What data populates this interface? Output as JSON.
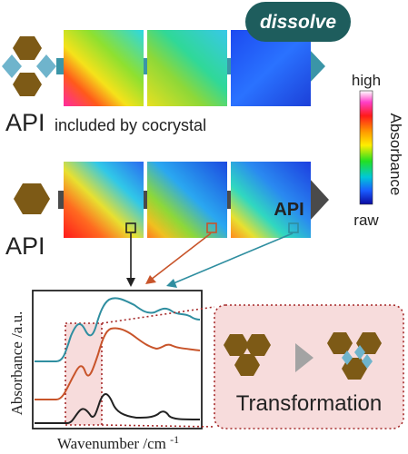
{
  "top_row": {
    "badge_label": "dissolve",
    "caption_api": "API",
    "caption_rest": "included by cocrystal"
  },
  "middle_row": {
    "caption_api": "API",
    "map_label": "API"
  },
  "colorbar": {
    "high_label": "high",
    "low_label": "raw",
    "title": "Absorbance"
  },
  "spectrum": {
    "ylabel": "Absorbance /a.u.",
    "xlabel_main": "Wavenumber /cm",
    "xlabel_sup": "-1"
  },
  "transformation": {
    "label": "Transformation"
  },
  "colors": {
    "api_hexagon": "#7d5a16",
    "coformer_diamond": "#6fb4cc",
    "arrow_teal": "#3b95a7",
    "arrow_dark": "#4a4a4a",
    "badge": "#1e5d5d",
    "trace_teal": "#2f8ea0",
    "trace_orange": "#c8542a",
    "trace_black": "#222222",
    "highlight_fill": "#f7dcdc",
    "highlight_border": "#a52a2a"
  }
}
